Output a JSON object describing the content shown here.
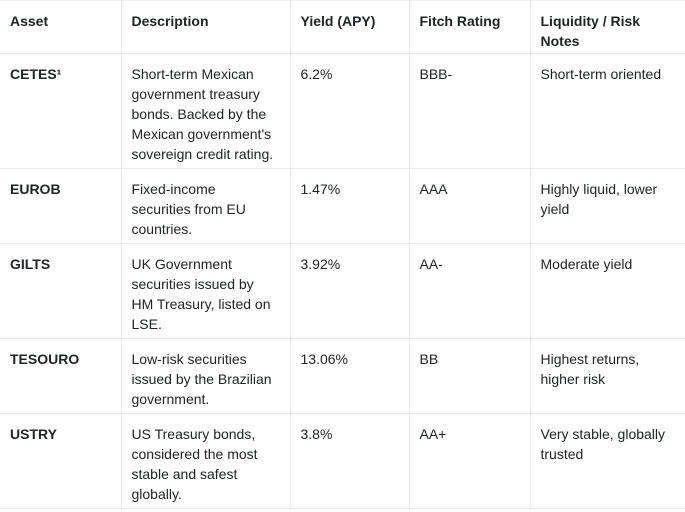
{
  "table": {
    "columns": [
      {
        "key": "asset",
        "label": "Asset"
      },
      {
        "key": "description",
        "label": "Description"
      },
      {
        "key": "yield",
        "label": "Yield (APY)"
      },
      {
        "key": "fitch",
        "label": "Fitch Rating"
      },
      {
        "key": "notes",
        "label": "Liquidity / Risk Notes"
      }
    ],
    "rows": [
      {
        "asset": "CETES¹",
        "description": "Short-term Mexican government treasury bonds. Backed by the Mexican government's sovereign credit rating.",
        "yield": "6.2%",
        "fitch": "BBB-",
        "notes": "Short-term oriented"
      },
      {
        "asset": "EUROB",
        "description": "Fixed-income securities from EU countries.",
        "yield": "1.47%",
        "fitch": "AAA",
        "notes": "Highly liquid, lower yield"
      },
      {
        "asset": "GILTS",
        "description": "UK Government securities issued by HM Treasury, listed on LSE.",
        "yield": "3.92%",
        "fitch": "AA-",
        "notes": "Moderate yield"
      },
      {
        "asset": "TESOURO",
        "description": "Low-risk securities issued by the Brazilian government.",
        "yield": "13.06%",
        "fitch": "BB",
        "notes": "Highest returns, higher risk"
      },
      {
        "asset": "USTRY",
        "description": "US Treasury bonds, considered the most stable and safest globally.",
        "yield": "3.8%",
        "fitch": "AA+",
        "notes": "Very stable, globally trusted"
      }
    ]
  },
  "colors": {
    "background": "#ffffff",
    "text": "#212427",
    "border": "#e9e9e9"
  }
}
